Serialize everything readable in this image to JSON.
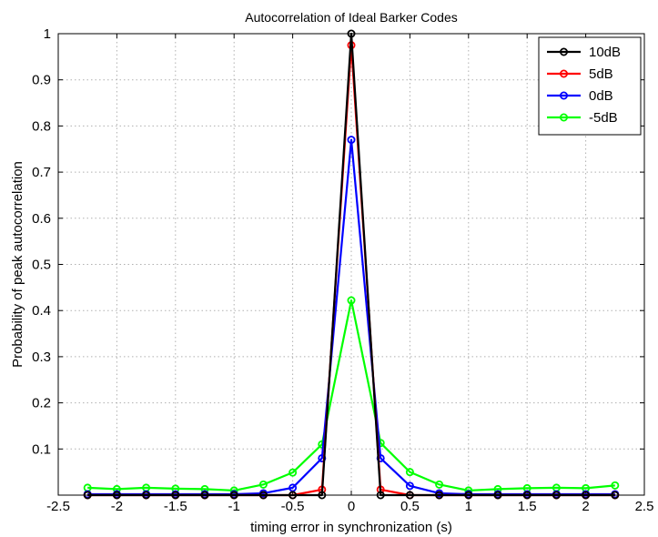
{
  "chart_data": {
    "type": "line",
    "title": "Autocorrelation of Ideal Barker Codes",
    "xlabel": "timing error in synchronization (s)",
    "ylabel": "Probability of peak autocorrelation",
    "xlim": [
      -2.5,
      2.5
    ],
    "ylim": [
      0,
      1
    ],
    "xticks": [
      -2.5,
      -2,
      -1.5,
      -1,
      -0.5,
      0,
      0.5,
      1,
      1.5,
      2,
      2.5
    ],
    "xtick_labels": [
      "-2.5",
      "-2",
      "-1.5",
      "-1",
      "-0.5",
      "0",
      "0.5",
      "1",
      "1.5",
      "2",
      "2.5"
    ],
    "yticks": [
      0.1,
      0.2,
      0.3,
      0.4,
      0.5,
      0.6,
      0.7,
      0.8,
      0.9,
      1
    ],
    "ytick_labels": [
      "0.1",
      "0.2",
      "0.3",
      "0.4",
      "0.5",
      "0.6",
      "0.7",
      "0.8",
      "0.9",
      "1"
    ],
    "grid": true,
    "legend_position": "top-right",
    "x": [
      -2.25,
      -2,
      -1.75,
      -1.5,
      -1.25,
      -1,
      -0.75,
      -0.5,
      -0.25,
      0,
      0.25,
      0.5,
      0.75,
      1,
      1.25,
      1.5,
      1.75,
      2,
      2.25
    ],
    "series": [
      {
        "name": "10dB",
        "color": "#000000",
        "values": [
          0,
          0,
          0,
          0,
          0,
          0,
          0,
          0,
          0,
          1.0,
          0,
          0,
          0,
          0,
          0,
          0,
          0,
          0,
          0
        ]
      },
      {
        "name": "5dB",
        "color": "#ff0000",
        "values": [
          0,
          0,
          0,
          0,
          0,
          0,
          0,
          0,
          0.012,
          0.975,
          0.012,
          0,
          0,
          0,
          0,
          0,
          0,
          0,
          0
        ]
      },
      {
        "name": "0dB",
        "color": "#0000ff",
        "values": [
          0.002,
          0.002,
          0.002,
          0.002,
          0.002,
          0.002,
          0.004,
          0.016,
          0.08,
          0.77,
          0.08,
          0.02,
          0.004,
          0.002,
          0.002,
          0.002,
          0.002,
          0.002,
          0.002
        ]
      },
      {
        "name": "-5dB",
        "color": "#00ff00",
        "values": [
          0.016,
          0.013,
          0.016,
          0.014,
          0.013,
          0.01,
          0.023,
          0.049,
          0.11,
          0.422,
          0.113,
          0.05,
          0.023,
          0.01,
          0.013,
          0.015,
          0.016,
          0.015,
          0.021
        ]
      }
    ]
  }
}
